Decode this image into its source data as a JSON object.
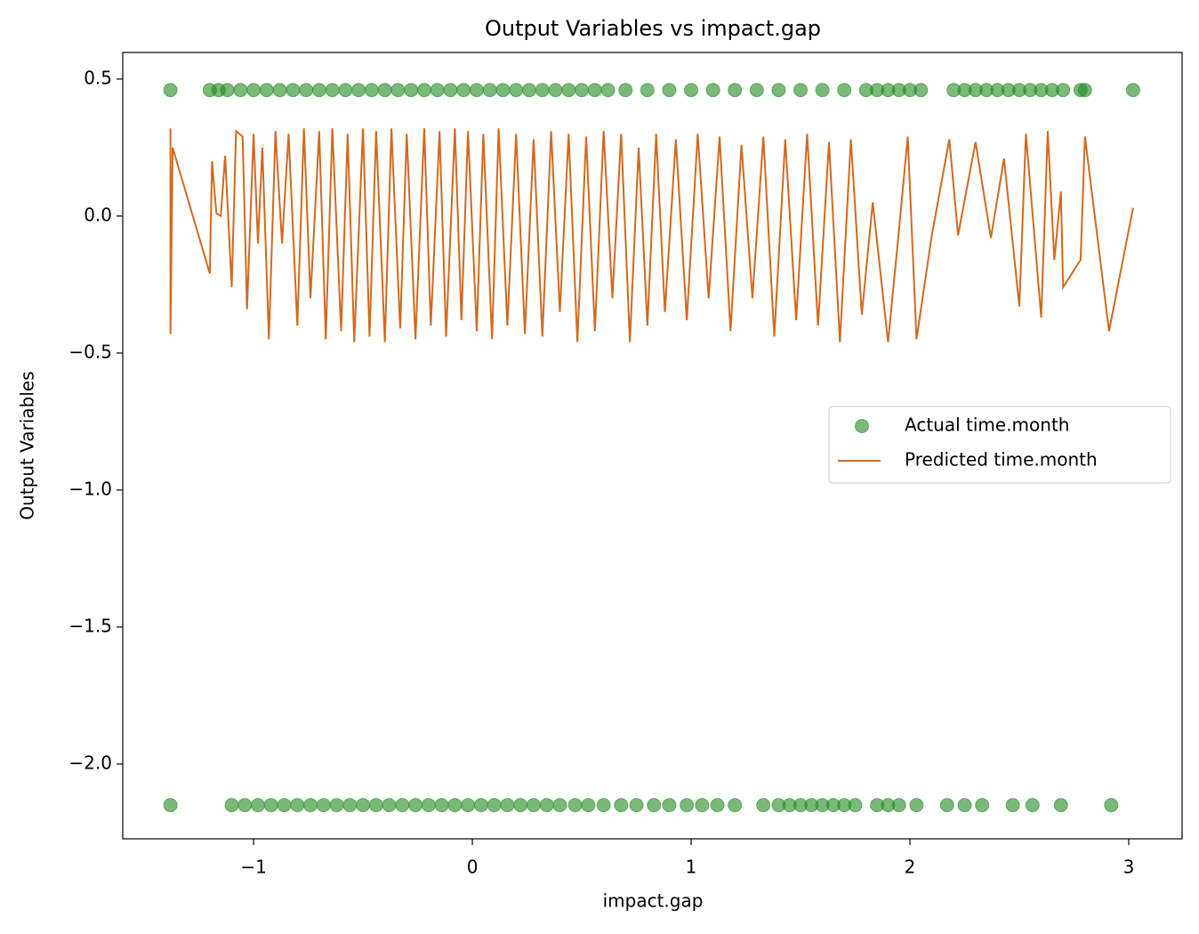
{
  "chart_data": {
    "type": "scatter_line",
    "title": "Output Variables vs impact.gap",
    "x_label": "impact.gap",
    "y_label": "Output Variables",
    "xlim": [
      -1.598,
      3.244
    ],
    "ylim": [
      -2.273,
      0.597
    ],
    "xticks": [
      {
        "value": -1,
        "label": "−1"
      },
      0,
      1,
      2,
      3
    ],
    "yticks": [
      {
        "value": -2.0,
        "label": "−2.0"
      },
      {
        "value": -1.5,
        "label": "−1.5"
      },
      {
        "value": -1.0,
        "label": "−1.0"
      },
      {
        "value": -0.5,
        "label": "−0.5"
      },
      {
        "value": 0.0,
        "label": "0.0"
      },
      0.5
    ],
    "legend": "center right",
    "series": [
      {
        "name": "Actual time.month",
        "kind": "scatter",
        "color": "#228b22",
        "x": [
          -1.38,
          -1.2,
          -1.16,
          -1.12,
          -1.06,
          -1.0,
          -0.94,
          -0.88,
          -0.82,
          -0.76,
          -0.7,
          -0.64,
          -0.58,
          -0.52,
          -0.46,
          -0.4,
          -0.34,
          -0.28,
          -0.22,
          -0.16,
          -0.1,
          -0.04,
          0.02,
          0.08,
          0.14,
          0.2,
          0.26,
          0.32,
          0.38,
          0.44,
          0.5,
          0.56,
          0.62,
          0.7,
          0.8,
          0.9,
          1.0,
          1.1,
          1.2,
          1.3,
          1.4,
          1.5,
          1.6,
          1.7,
          1.8,
          1.85,
          1.9,
          1.95,
          2.0,
          2.05,
          2.2,
          2.25,
          2.3,
          2.35,
          2.4,
          2.45,
          2.5,
          2.55,
          2.6,
          2.65,
          2.7,
          2.78,
          2.8,
          3.02,
          -1.38,
          -1.1,
          -1.04,
          -0.98,
          -0.92,
          -0.86,
          -0.8,
          -0.74,
          -0.68,
          -0.62,
          -0.56,
          -0.5,
          -0.44,
          -0.38,
          -0.32,
          -0.26,
          -0.2,
          -0.14,
          -0.08,
          -0.02,
          0.04,
          0.1,
          0.16,
          0.22,
          0.28,
          0.34,
          0.4,
          0.47,
          0.53,
          0.6,
          0.68,
          0.75,
          0.83,
          0.9,
          0.98,
          1.05,
          1.12,
          1.2,
          1.33,
          1.4,
          1.45,
          1.5,
          1.55,
          1.6,
          1.65,
          1.7,
          1.75,
          1.85,
          1.9,
          1.95,
          2.03,
          2.17,
          2.25,
          2.33,
          2.47,
          2.56,
          2.69,
          2.92
        ],
        "values": [
          0.46,
          0.46,
          0.46,
          0.46,
          0.46,
          0.46,
          0.46,
          0.46,
          0.46,
          0.46,
          0.46,
          0.46,
          0.46,
          0.46,
          0.46,
          0.46,
          0.46,
          0.46,
          0.46,
          0.46,
          0.46,
          0.46,
          0.46,
          0.46,
          0.46,
          0.46,
          0.46,
          0.46,
          0.46,
          0.46,
          0.46,
          0.46,
          0.46,
          0.46,
          0.46,
          0.46,
          0.46,
          0.46,
          0.46,
          0.46,
          0.46,
          0.46,
          0.46,
          0.46,
          0.46,
          0.46,
          0.46,
          0.46,
          0.46,
          0.46,
          0.46,
          0.46,
          0.46,
          0.46,
          0.46,
          0.46,
          0.46,
          0.46,
          0.46,
          0.46,
          0.46,
          0.46,
          0.46,
          0.46,
          -2.15,
          -2.15,
          -2.15,
          -2.15,
          -2.15,
          -2.15,
          -2.15,
          -2.15,
          -2.15,
          -2.15,
          -2.15,
          -2.15,
          -2.15,
          -2.15,
          -2.15,
          -2.15,
          -2.15,
          -2.15,
          -2.15,
          -2.15,
          -2.15,
          -2.15,
          -2.15,
          -2.15,
          -2.15,
          -2.15,
          -2.15,
          -2.15,
          -2.15,
          -2.15,
          -2.15,
          -2.15,
          -2.15,
          -2.15,
          -2.15,
          -2.15,
          -2.15,
          -2.15,
          -2.15,
          -2.15,
          -2.15,
          -2.15,
          -2.15,
          -2.15,
          -2.15,
          -2.15,
          -2.15,
          -2.15,
          -2.15,
          -2.15,
          -2.15,
          -2.15,
          -2.15,
          -2.15,
          -2.15,
          -2.15,
          -2.15,
          -2.15
        ]
      },
      {
        "name": "Predicted time.month",
        "kind": "line",
        "color": "#d2691e",
        "x": [
          -1.38,
          -1.38,
          -1.37,
          -1.2,
          -1.19,
          -1.17,
          -1.15,
          -1.13,
          -1.1,
          -1.08,
          -1.05,
          -1.03,
          -1.0,
          -0.98,
          -0.96,
          -0.93,
          -0.9,
          -0.87,
          -0.84,
          -0.8,
          -0.77,
          -0.74,
          -0.7,
          -0.67,
          -0.64,
          -0.6,
          -0.57,
          -0.54,
          -0.5,
          -0.47,
          -0.44,
          -0.4,
          -0.37,
          -0.33,
          -0.3,
          -0.26,
          -0.22,
          -0.19,
          -0.15,
          -0.12,
          -0.08,
          -0.05,
          -0.02,
          0.02,
          0.05,
          0.09,
          0.12,
          0.16,
          0.2,
          0.24,
          0.28,
          0.32,
          0.36,
          0.4,
          0.44,
          0.48,
          0.52,
          0.56,
          0.6,
          0.64,
          0.68,
          0.72,
          0.76,
          0.8,
          0.84,
          0.88,
          0.93,
          0.98,
          1.03,
          1.08,
          1.13,
          1.18,
          1.23,
          1.28,
          1.33,
          1.38,
          1.43,
          1.48,
          1.53,
          1.58,
          1.63,
          1.68,
          1.73,
          1.78,
          1.83,
          1.9,
          1.95,
          1.99,
          2.03,
          2.1,
          2.18,
          2.22,
          2.3,
          2.37,
          2.43,
          2.5,
          2.53,
          2.6,
          2.63,
          2.66,
          2.69,
          2.7,
          2.78,
          2.8,
          2.91,
          3.02
        ],
        "values": [
          0.32,
          -0.43,
          0.25,
          -0.21,
          0.2,
          0.01,
          0.0,
          0.22,
          -0.26,
          0.31,
          0.29,
          -0.34,
          0.3,
          -0.1,
          0.25,
          -0.45,
          0.31,
          -0.1,
          0.3,
          -0.4,
          0.32,
          -0.3,
          0.31,
          -0.45,
          0.32,
          -0.42,
          0.3,
          -0.46,
          0.32,
          -0.44,
          0.31,
          -0.46,
          0.32,
          -0.41,
          0.3,
          -0.45,
          0.32,
          -0.4,
          0.31,
          -0.44,
          0.32,
          -0.38,
          0.31,
          -0.42,
          0.3,
          -0.45,
          0.32,
          -0.4,
          0.3,
          -0.43,
          0.28,
          -0.44,
          0.31,
          -0.35,
          0.3,
          -0.46,
          0.29,
          -0.42,
          0.31,
          -0.3,
          0.3,
          -0.46,
          0.25,
          -0.4,
          0.3,
          -0.35,
          0.28,
          -0.38,
          0.3,
          -0.3,
          0.29,
          -0.42,
          0.26,
          -0.3,
          0.29,
          -0.44,
          0.28,
          -0.38,
          0.3,
          -0.4,
          0.27,
          -0.46,
          0.28,
          -0.36,
          0.05,
          -0.46,
          -0.05,
          0.29,
          -0.45,
          -0.07,
          0.28,
          -0.07,
          0.27,
          -0.08,
          0.21,
          -0.33,
          0.3,
          -0.37,
          0.31,
          -0.16,
          0.09,
          -0.26,
          -0.16,
          0.29,
          -0.42,
          0.03
        ]
      }
    ]
  }
}
